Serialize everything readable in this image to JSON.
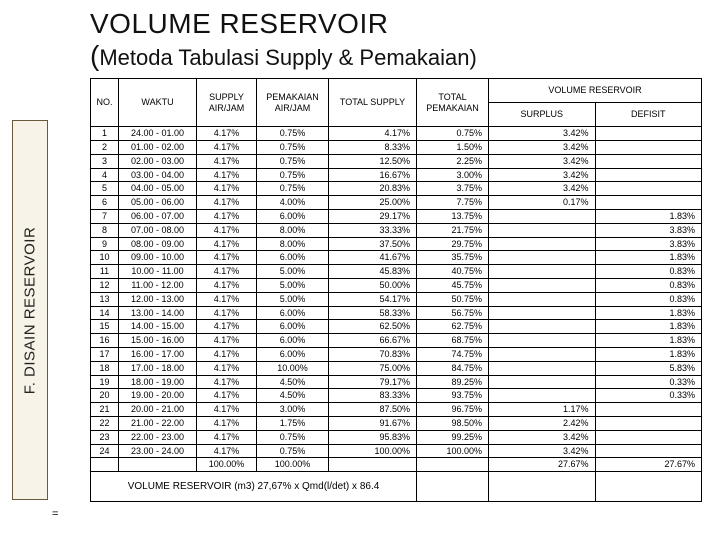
{
  "sidebar": {
    "label": "F. DISAIN RESERVOIR"
  },
  "header": {
    "title": "VOLUME RESERVOIR",
    "subtitle": "Metoda Tabulasi Supply & Pemakaian)"
  },
  "table": {
    "columns": {
      "no": "NO.",
      "waktu": "WAKTU",
      "supply": "SUPPLY AIR/JAM",
      "pemakaian": "PEMAKAIAN AIR/JAM",
      "total_supply": "TOTAL SUPPLY",
      "total_pemakaian": "TOTAL PEMAKAIAN",
      "volume_reservoir": "VOLUME RESERVOIR",
      "surplus": "SURPLUS",
      "defisit": "DEFISIT"
    },
    "rows": [
      {
        "no": "1",
        "waktu": "24.00 - 01.00",
        "sup": "4.17%",
        "pem": "0.75%",
        "ts": "4.17%",
        "tp": "0.75%",
        "s": "3.42%",
        "d": ""
      },
      {
        "no": "2",
        "waktu": "01.00 - 02.00",
        "sup": "4.17%",
        "pem": "0.75%",
        "ts": "8.33%",
        "tp": "1.50%",
        "s": "3.42%",
        "d": ""
      },
      {
        "no": "3",
        "waktu": "02.00 - 03.00",
        "sup": "4.17%",
        "pem": "0.75%",
        "ts": "12.50%",
        "tp": "2.25%",
        "s": "3.42%",
        "d": ""
      },
      {
        "no": "4",
        "waktu": "03.00 - 04.00",
        "sup": "4.17%",
        "pem": "0.75%",
        "ts": "16.67%",
        "tp": "3.00%",
        "s": "3.42%",
        "d": ""
      },
      {
        "no": "5",
        "waktu": "04.00 - 05.00",
        "sup": "4.17%",
        "pem": "0.75%",
        "ts": "20.83%",
        "tp": "3.75%",
        "s": "3.42%",
        "d": ""
      },
      {
        "no": "6",
        "waktu": "05.00 - 06.00",
        "sup": "4.17%",
        "pem": "4.00%",
        "ts": "25.00%",
        "tp": "7.75%",
        "s": "0.17%",
        "d": ""
      },
      {
        "no": "7",
        "waktu": "06.00 - 07.00",
        "sup": "4.17%",
        "pem": "6.00%",
        "ts": "29.17%",
        "tp": "13.75%",
        "s": "",
        "d": "1.83%"
      },
      {
        "no": "8",
        "waktu": "07.00 - 08.00",
        "sup": "4.17%",
        "pem": "8.00%",
        "ts": "33.33%",
        "tp": "21.75%",
        "s": "",
        "d": "3.83%"
      },
      {
        "no": "9",
        "waktu": "08.00 - 09.00",
        "sup": "4.17%",
        "pem": "8.00%",
        "ts": "37.50%",
        "tp": "29.75%",
        "s": "",
        "d": "3.83%"
      },
      {
        "no": "10",
        "waktu": "09.00 - 10.00",
        "sup": "4.17%",
        "pem": "6.00%",
        "ts": "41.67%",
        "tp": "35.75%",
        "s": "",
        "d": "1.83%"
      },
      {
        "no": "11",
        "waktu": "10.00 - 11.00",
        "sup": "4.17%",
        "pem": "5.00%",
        "ts": "45.83%",
        "tp": "40.75%",
        "s": "",
        "d": "0.83%"
      },
      {
        "no": "12",
        "waktu": "11.00 - 12.00",
        "sup": "4.17%",
        "pem": "5.00%",
        "ts": "50.00%",
        "tp": "45.75%",
        "s": "",
        "d": "0.83%"
      },
      {
        "no": "13",
        "waktu": "12.00 - 13.00",
        "sup": "4.17%",
        "pem": "5.00%",
        "ts": "54.17%",
        "tp": "50.75%",
        "s": "",
        "d": "0.83%"
      },
      {
        "no": "14",
        "waktu": "13.00 - 14.00",
        "sup": "4.17%",
        "pem": "6.00%",
        "ts": "58.33%",
        "tp": "56.75%",
        "s": "",
        "d": "1.83%"
      },
      {
        "no": "15",
        "waktu": "14.00 - 15.00",
        "sup": "4.17%",
        "pem": "6.00%",
        "ts": "62.50%",
        "tp": "62.75%",
        "s": "",
        "d": "1.83%"
      },
      {
        "no": "16",
        "waktu": "15.00 - 16.00",
        "sup": "4.17%",
        "pem": "6.00%",
        "ts": "66.67%",
        "tp": "68.75%",
        "s": "",
        "d": "1.83%"
      },
      {
        "no": "17",
        "waktu": "16.00 - 17.00",
        "sup": "4.17%",
        "pem": "6.00%",
        "ts": "70.83%",
        "tp": "74.75%",
        "s": "",
        "d": "1.83%"
      },
      {
        "no": "18",
        "waktu": "17.00 - 18.00",
        "sup": "4.17%",
        "pem": "10.00%",
        "ts": "75.00%",
        "tp": "84.75%",
        "s": "",
        "d": "5.83%"
      },
      {
        "no": "19",
        "waktu": "18.00 - 19.00",
        "sup": "4.17%",
        "pem": "4.50%",
        "ts": "79.17%",
        "tp": "89.25%",
        "s": "",
        "d": "0.33%"
      },
      {
        "no": "20",
        "waktu": "19.00 - 20.00",
        "sup": "4.17%",
        "pem": "4.50%",
        "ts": "83.33%",
        "tp": "93.75%",
        "s": "",
        "d": "0.33%"
      },
      {
        "no": "21",
        "waktu": "20.00 - 21.00",
        "sup": "4.17%",
        "pem": "3.00%",
        "ts": "87.50%",
        "tp": "96.75%",
        "s": "1.17%",
        "d": ""
      },
      {
        "no": "22",
        "waktu": "21.00 - 22.00",
        "sup": "4.17%",
        "pem": "1.75%",
        "ts": "91.67%",
        "tp": "98.50%",
        "s": "2.42%",
        "d": ""
      },
      {
        "no": "23",
        "waktu": "22.00 - 23.00",
        "sup": "4.17%",
        "pem": "0.75%",
        "ts": "95.83%",
        "tp": "99.25%",
        "s": "3.42%",
        "d": ""
      },
      {
        "no": "24",
        "waktu": "23.00 - 24.00",
        "sup": "4.17%",
        "pem": "0.75%",
        "ts": "100.00%",
        "tp": "100.00%",
        "s": "3.42%",
        "d": ""
      }
    ],
    "totals": {
      "sup": "100.00%",
      "pem": "100.00%",
      "s": "27.67%",
      "d": "27.67%"
    },
    "footer_formula": "VOLUME RESERVOIR (m3) 27,67% x Qmd(l/det) x 86.4",
    "footer_eq": "="
  }
}
